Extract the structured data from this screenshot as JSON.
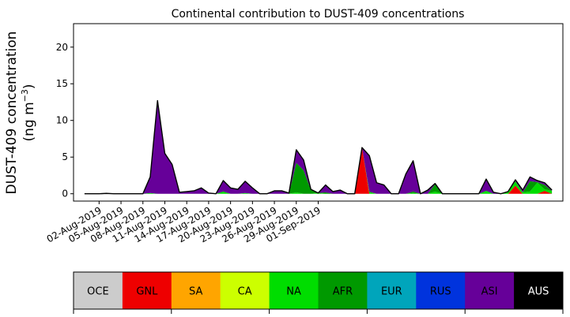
{
  "chart_data": {
    "type": "area",
    "stacked": true,
    "title": "Continental contribution to DUST-409 concentrations",
    "ylabel_line1": "DUST-409 concentration",
    "ylabel_line2_prefix": "(ng m",
    "ylabel_line2_exp": "−3",
    "ylabel_line2_suffix": ")",
    "xlabel": "",
    "x_start_date": "2019-07-31",
    "x": [
      0,
      1,
      2,
      3,
      4,
      5,
      6,
      7,
      8,
      9,
      10,
      11,
      12,
      13,
      14,
      15,
      16,
      17,
      18,
      19,
      20,
      21,
      22,
      23,
      24,
      25,
      26,
      27,
      28,
      29,
      30,
      31,
      32,
      33,
      34,
      35,
      36,
      37,
      38,
      39,
      40,
      41,
      42,
      43,
      44,
      45,
      46,
      47,
      48,
      49,
      50,
      51,
      52,
      53,
      54,
      55,
      56,
      57,
      58,
      59,
      60,
      61,
      62,
      63,
      64
    ],
    "xlim": [
      -1.5,
      65.5
    ],
    "ylim": [
      -1.0,
      23.2
    ],
    "yticks": [
      0,
      5,
      10,
      15,
      20
    ],
    "xticks": [
      {
        "pos": 2,
        "label": "02-Aug-2019"
      },
      {
        "pos": 5,
        "label": "05-Aug-2019"
      },
      {
        "pos": 8,
        "label": "08-Aug-2019"
      },
      {
        "pos": 11,
        "label": "11-Aug-2019"
      },
      {
        "pos": 14,
        "label": "14-Aug-2019"
      },
      {
        "pos": 17,
        "label": "17-Aug-2019"
      },
      {
        "pos": 20,
        "label": "20-Aug-2019"
      },
      {
        "pos": 23,
        "label": "23-Aug-2019"
      },
      {
        "pos": 26,
        "label": "26-Aug-2019"
      },
      {
        "pos": 29,
        "label": "29-Aug-2019"
      },
      {
        "pos": 32,
        "label": "01-Sep-2019"
      }
    ],
    "series": [
      {
        "name": "OCE",
        "color": "#cccccc",
        "values": [
          0,
          0,
          0,
          0,
          0,
          0,
          0,
          0,
          0,
          0,
          0,
          0,
          0,
          0,
          0,
          0,
          0,
          0,
          0,
          0,
          0,
          0,
          0,
          0,
          0,
          0,
          0,
          0,
          0,
          0,
          0,
          0,
          0,
          0,
          0,
          0,
          0,
          0,
          0,
          0,
          0,
          0,
          0,
          0,
          0,
          0,
          0,
          0,
          0,
          0,
          0,
          0,
          0,
          0,
          0,
          0,
          0,
          0,
          0,
          0,
          0,
          0,
          0,
          0,
          0
        ]
      },
      {
        "name": "GNL",
        "color": "#ee0000",
        "values": [
          0,
          0,
          0,
          0,
          0,
          0,
          0,
          0,
          0,
          0,
          0,
          0,
          0,
          0,
          0,
          0,
          0,
          0,
          0,
          0,
          0,
          0,
          0,
          0,
          0,
          0,
          0,
          0,
          0,
          0,
          0,
          0,
          0,
          0,
          0,
          0,
          0,
          0,
          6.3,
          0,
          0,
          0,
          0,
          0,
          0,
          0,
          0,
          0,
          0,
          0,
          0,
          0,
          0,
          0,
          0,
          0,
          0,
          0,
          0,
          1.1,
          0,
          0,
          0,
          0.4,
          0
        ]
      },
      {
        "name": "SA",
        "color": "#ffa500",
        "values": [
          0,
          0,
          0,
          0,
          0,
          0,
          0,
          0,
          0,
          0,
          0,
          0,
          0,
          0,
          0,
          0,
          0,
          0,
          0,
          0,
          0,
          0,
          0,
          0,
          0,
          0,
          0,
          0,
          0,
          0,
          0,
          0,
          0,
          0,
          0,
          0,
          0,
          0,
          0,
          0,
          0,
          0,
          0,
          0,
          0,
          0,
          0,
          0,
          0,
          0,
          0,
          0,
          0,
          0,
          0,
          0,
          0,
          0,
          0,
          0,
          0,
          0,
          0,
          0,
          0
        ]
      },
      {
        "name": "CA",
        "color": "#ccff00",
        "values": [
          0,
          0,
          0,
          0.05,
          0,
          0,
          0,
          0,
          0,
          0,
          0,
          0,
          0,
          0,
          0,
          0,
          0,
          0,
          0,
          0,
          0,
          0,
          0,
          0,
          0,
          0,
          0,
          0,
          0,
          0,
          0,
          0,
          0,
          0,
          0,
          0,
          0,
          0,
          0,
          0,
          0,
          0,
          0,
          0,
          0,
          0,
          0,
          0,
          0,
          0,
          0,
          0,
          0,
          0,
          0,
          0,
          0,
          0,
          0,
          0,
          0,
          0,
          0,
          0,
          0
        ]
      },
      {
        "name": "NA",
        "color": "#00dd00",
        "values": [
          0,
          0,
          0,
          0,
          0,
          0,
          0,
          0,
          0,
          0.1,
          0,
          0,
          0,
          0,
          0,
          0,
          0,
          0,
          0,
          0.3,
          0,
          0,
          0.1,
          0,
          0,
          0,
          0,
          0,
          0,
          0.2,
          0,
          0,
          0.1,
          0,
          0,
          0,
          0,
          0,
          0,
          0.2,
          0,
          0,
          0,
          0,
          0,
          0.1,
          0,
          0,
          0.3,
          0,
          0,
          0,
          0,
          0,
          0,
          0.4,
          0,
          0,
          0.3,
          0.6,
          0.2,
          0.3,
          1.5,
          0.2,
          0.4
        ]
      },
      {
        "name": "AFR",
        "color": "#009900",
        "values": [
          0,
          0,
          0,
          0,
          0,
          0,
          0,
          0,
          0,
          0,
          0,
          0,
          0,
          0,
          0,
          0,
          0,
          0,
          0,
          0,
          0,
          0,
          0,
          0,
          0,
          0,
          0,
          0,
          0,
          4.0,
          3.2,
          0.5,
          0,
          0.2,
          0,
          0,
          0,
          0,
          0,
          0.1,
          0,
          0,
          0,
          0,
          0,
          0.2,
          0,
          0,
          1.0,
          0,
          0,
          0,
          0,
          0,
          0,
          0,
          0,
          0,
          0,
          0,
          0,
          1.4,
          0.1,
          0.6,
          0
        ]
      },
      {
        "name": "EUR",
        "color": "#00a5bb",
        "values": [
          0,
          0,
          0,
          0,
          0,
          0,
          0,
          0,
          0,
          0,
          0,
          0,
          0,
          0,
          0,
          0,
          0,
          0,
          0,
          0,
          0,
          0,
          0,
          0,
          0,
          0,
          0,
          0,
          0,
          0,
          0,
          0,
          0,
          0,
          0,
          0,
          0,
          0,
          0,
          0,
          0,
          0,
          0,
          0,
          0,
          0,
          0,
          0,
          0,
          0,
          0,
          0,
          0,
          0,
          0,
          0,
          0,
          0,
          0,
          0,
          0,
          0,
          0,
          0,
          0
        ]
      },
      {
        "name": "RUS",
        "color": "#0033dd",
        "values": [
          0,
          0,
          0,
          0,
          0,
          0,
          0,
          0,
          0,
          0,
          0,
          0,
          0,
          0,
          0,
          0,
          0,
          0,
          0,
          0,
          0,
          0,
          0,
          0,
          0,
          0,
          0,
          0,
          0,
          0,
          0,
          0,
          0,
          0,
          0,
          0,
          0,
          0,
          0,
          0,
          0,
          0,
          0,
          0,
          0,
          0,
          0,
          0,
          0,
          0,
          0,
          0,
          0,
          0,
          0,
          0,
          0,
          0,
          0,
          0,
          0,
          0,
          0,
          0,
          0
        ]
      },
      {
        "name": "ASI",
        "color": "#660099",
        "values": [
          0,
          0,
          0,
          0,
          0,
          0,
          0,
          0,
          0,
          2.2,
          12.7,
          5.5,
          4,
          0.2,
          0.3,
          0.4,
          0.8,
          0.1,
          0,
          1.5,
          0.8,
          0.6,
          1.6,
          0.8,
          0,
          0,
          0.4,
          0.4,
          0.1,
          1.8,
          1.4,
          0.1,
          0,
          1.0,
          0.3,
          0.5,
          0,
          0,
          0,
          4.9,
          1.5,
          1.2,
          0,
          0,
          2.7,
          4.2,
          0,
          0.5,
          0.1,
          0,
          0,
          0,
          0,
          0,
          0,
          1.6,
          0.2,
          0,
          0,
          0.2,
          0.3,
          0.6,
          0.2,
          0.3,
          0.1
        ]
      },
      {
        "name": "AUS",
        "color": "#000000",
        "values": [
          0,
          0,
          0,
          0,
          0,
          0,
          0,
          0,
          0,
          0,
          0,
          0,
          0,
          0,
          0,
          0,
          0,
          0,
          0,
          0,
          0,
          0,
          0,
          0,
          0,
          0,
          0,
          0,
          0,
          0,
          0,
          0,
          0,
          0,
          0,
          0,
          0,
          0,
          0,
          0,
          0,
          0,
          0,
          0,
          0,
          0,
          0,
          0,
          0,
          0,
          0,
          0,
          0,
          0,
          0,
          0,
          0,
          0,
          0,
          0,
          0,
          0,
          0,
          0,
          0
        ]
      }
    ],
    "legend_location": "bottom colorbar"
  }
}
